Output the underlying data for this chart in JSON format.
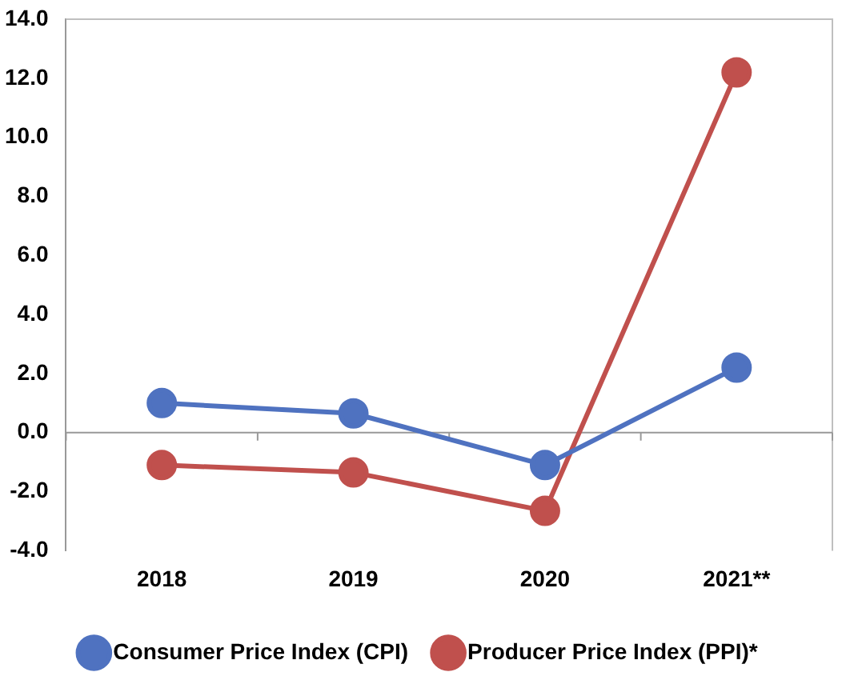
{
  "chart_data": {
    "type": "line",
    "categories": [
      "2018",
      "2019",
      "2020",
      "2021**"
    ],
    "series": [
      {
        "name": "Consumer Price Index (CPI)",
        "color": "#4f72c0",
        "values": [
          1.0,
          0.65,
          -1.1,
          2.2
        ]
      },
      {
        "name": "Producer Price Index (PPI)*",
        "color": "#c0504d",
        "values": [
          -1.1,
          -1.35,
          -2.65,
          12.2
        ]
      }
    ],
    "ylim": [
      -4,
      14
    ],
    "yticks": [
      {
        "value": -4,
        "label": "-4.0"
      },
      {
        "value": -2,
        "label": "-2.0"
      },
      {
        "value": 0,
        "label": "0.0"
      },
      {
        "value": 2,
        "label": "2.0"
      },
      {
        "value": 4,
        "label": "4.0"
      },
      {
        "value": 6,
        "label": "6.0"
      },
      {
        "value": 8,
        "label": "8.0"
      },
      {
        "value": 10,
        "label": "10.0"
      },
      {
        "value": 12,
        "label": "12.0"
      },
      {
        "value": 14,
        "label": "14.0"
      }
    ],
    "ref_lines": [
      {
        "axis": "y",
        "value": 0,
        "color": "#999999"
      }
    ],
    "grid": false,
    "legend": "bottom",
    "marker": "circle",
    "line_style": "solid"
  }
}
